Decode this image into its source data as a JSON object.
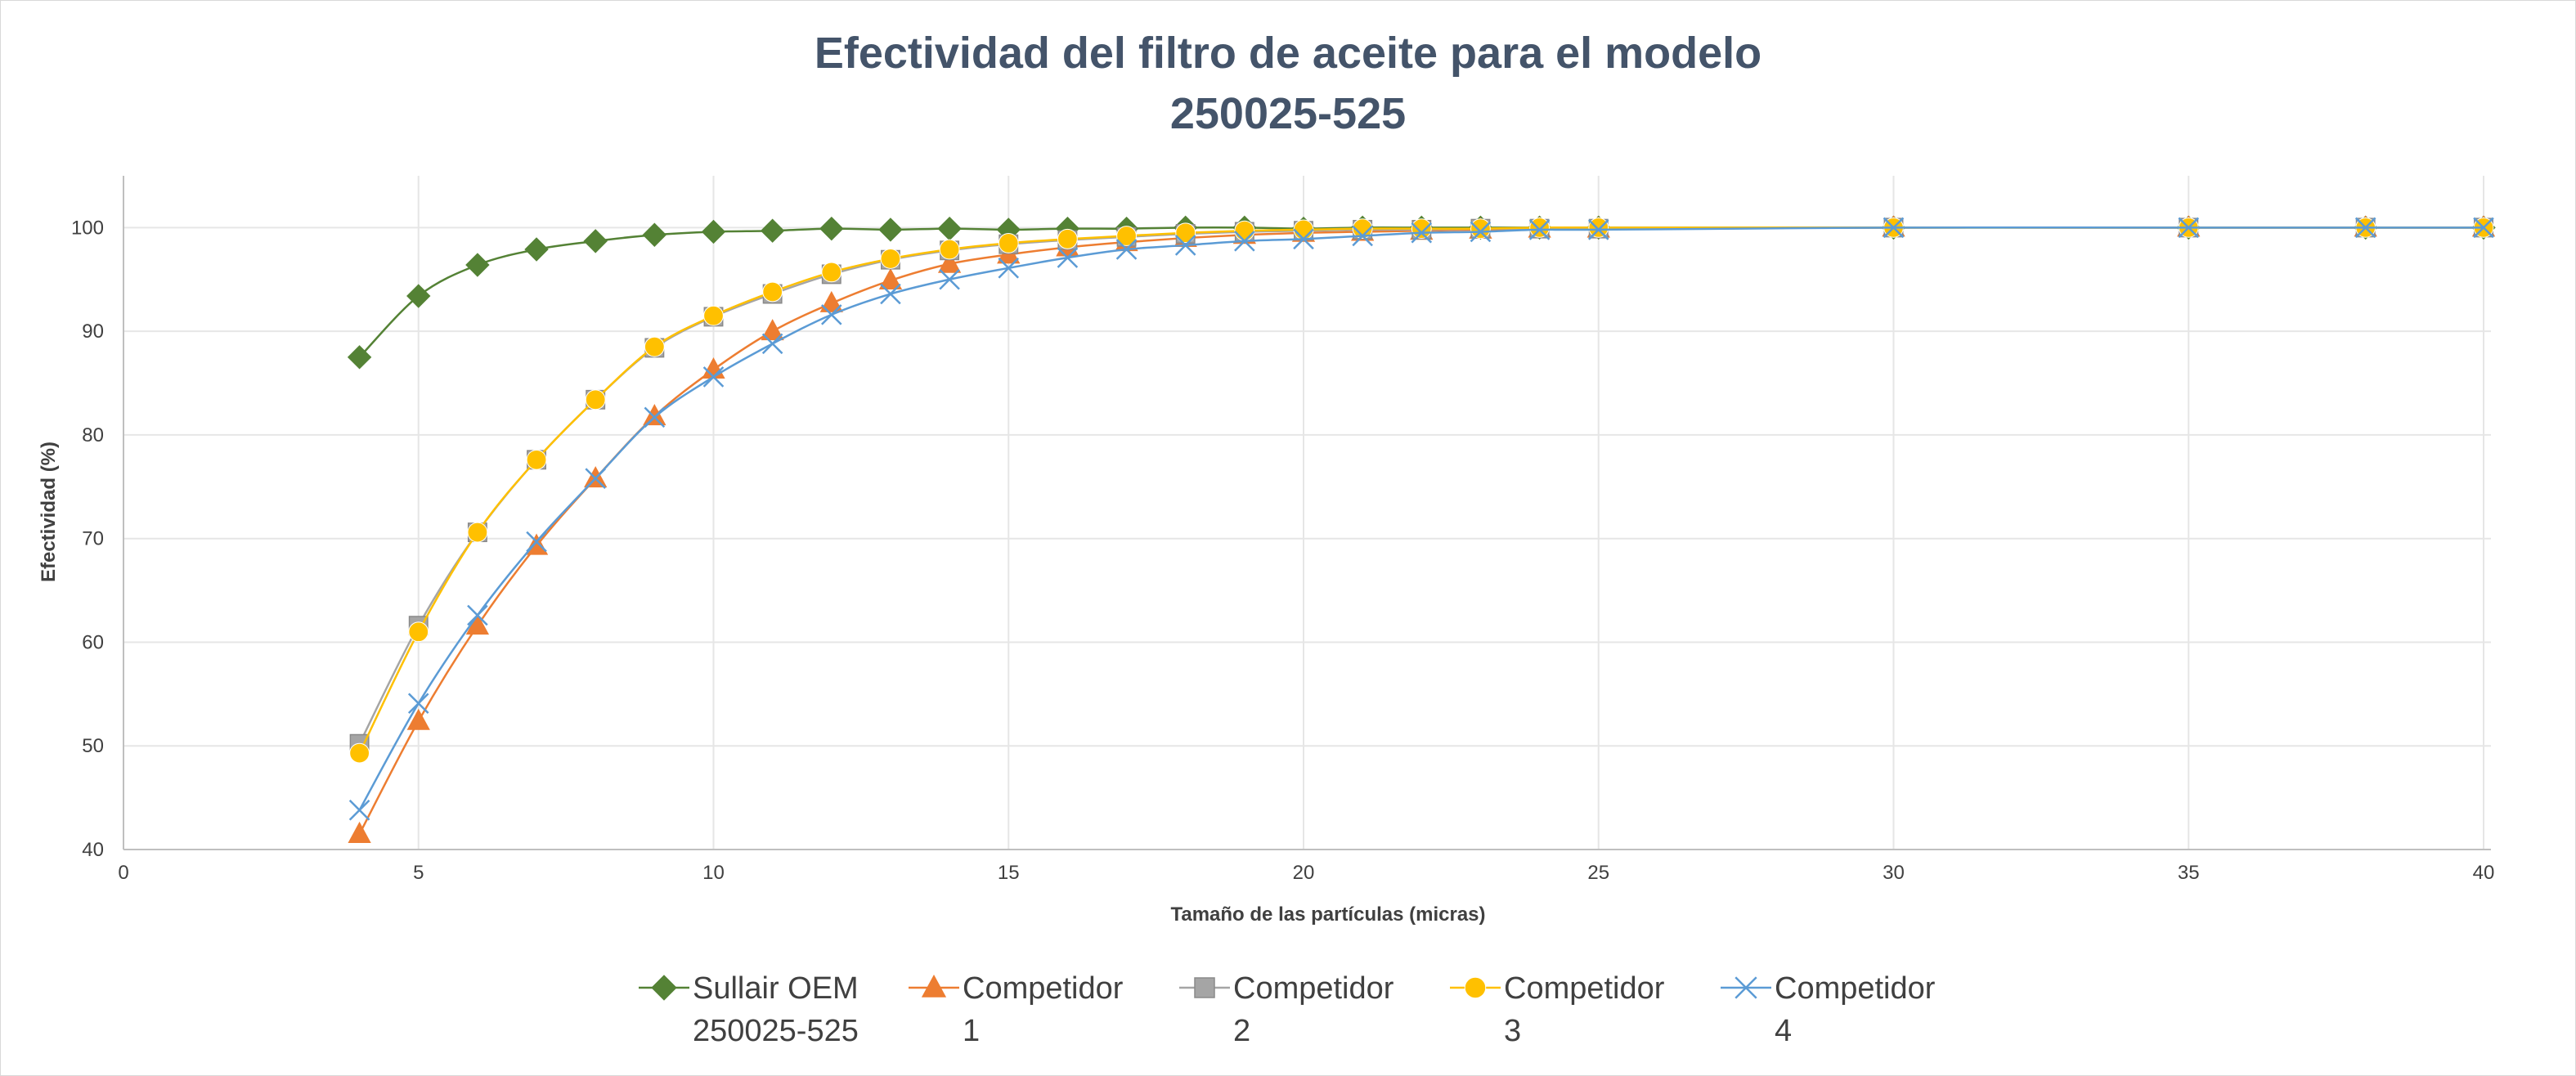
{
  "chart_data": {
    "type": "scatter",
    "title_lines": [
      "Efectividad del filtro de aceite para el modelo",
      "250025-525"
    ],
    "xlabel": "Tamaño de las partículas (micras)",
    "ylabel": "Efectividad (%)",
    "xlim": [
      0,
      42
    ],
    "ylim": [
      40,
      105
    ],
    "xticks": [
      0,
      5,
      10,
      15,
      20,
      25,
      30,
      35,
      40
    ],
    "yticks": [
      40,
      50,
      60,
      70,
      80,
      90,
      100
    ],
    "grid": true,
    "smooth": true,
    "legend_position": "bottom",
    "x": [
      4,
      5,
      6,
      7,
      8,
      9,
      10,
      11,
      12,
      13,
      14,
      15,
      16,
      17,
      18,
      19,
      20,
      21,
      22,
      23,
      24,
      25,
      30,
      35,
      38,
      40
    ],
    "series": [
      {
        "name": "Sullair OEM 250025-525",
        "legend_lines": [
          "Sullair OEM",
          "250025-525"
        ],
        "color": "#548235",
        "marker": "diamond",
        "values": [
          87.5,
          93.4,
          96.4,
          97.9,
          98.7,
          99.3,
          99.6,
          99.7,
          99.9,
          99.8,
          99.9,
          99.8,
          99.9,
          99.9,
          100,
          100,
          99.9,
          100,
          100,
          100,
          100,
          100,
          100,
          100,
          100,
          100
        ]
      },
      {
        "name": "Competidor 1",
        "legend_lines": [
          "Competidor",
          "1"
        ],
        "color": "#ed7d31",
        "marker": "triangle",
        "values": [
          41.5,
          52.4,
          61.6,
          69.3,
          75.8,
          81.8,
          86.3,
          90.0,
          92.7,
          94.9,
          96.5,
          97.4,
          98.1,
          98.6,
          99.0,
          99.3,
          99.5,
          99.6,
          99.7,
          99.8,
          99.9,
          99.9,
          100,
          100,
          100,
          100
        ]
      },
      {
        "name": "Competidor 2",
        "legend_lines": [
          "Competidor",
          "2"
        ],
        "color": "#a5a5a5",
        "marker": "square",
        "values": [
          50.2,
          61.6,
          70.6,
          77.6,
          83.4,
          88.4,
          91.4,
          93.6,
          95.5,
          96.9,
          97.8,
          98.4,
          98.8,
          99.1,
          99.4,
          99.6,
          99.7,
          99.8,
          99.8,
          99.9,
          99.9,
          99.9,
          100,
          100,
          100,
          100
        ]
      },
      {
        "name": "Competidor 3",
        "legend_lines": [
          "Competidor",
          "3"
        ],
        "color": "#ffc000",
        "marker": "circle",
        "values": [
          49.3,
          61.0,
          70.6,
          77.6,
          83.4,
          88.5,
          91.5,
          93.8,
          95.7,
          97.0,
          97.9,
          98.5,
          98.9,
          99.2,
          99.5,
          99.7,
          99.8,
          99.9,
          99.9,
          99.9,
          100,
          100,
          100,
          100,
          100,
          100
        ]
      },
      {
        "name": "Competidor 4",
        "legend_lines": [
          "Competidor",
          "4"
        ],
        "color": "#5b9bd5",
        "marker": "x",
        "values": [
          43.8,
          54.1,
          62.6,
          69.7,
          75.8,
          81.7,
          85.6,
          88.8,
          91.6,
          93.6,
          95.0,
          96.1,
          97.1,
          97.9,
          98.3,
          98.7,
          98.9,
          99.2,
          99.5,
          99.6,
          99.8,
          99.8,
          100,
          100,
          100,
          100
        ]
      }
    ]
  }
}
